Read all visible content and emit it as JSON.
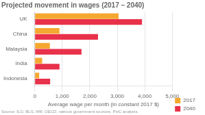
{
  "chart_data": {
    "type": "bar",
    "orientation": "horizontal",
    "title": "Projected movement in wages (2017 – 2040)",
    "categories": [
      "UK",
      "China",
      "Malaysia",
      "India",
      "Indonesia"
    ],
    "series": [
      {
        "name": "2017",
        "color": "#F5A830",
        "values": [
          3050,
          900,
          550,
          270,
          160
        ]
      },
      {
        "name": "2040",
        "color": "#E8314A",
        "values": [
          3900,
          2300,
          1700,
          900,
          560
        ]
      }
    ],
    "xlabel": "Average wage per month (in constant 2017 $)",
    "xlim": [
      0,
      5000
    ],
    "xticks": [
      0,
      {
        "value": 1000,
        "label": "1,000"
      },
      {
        "value": 2000,
        "label": "2,000"
      },
      {
        "value": 3000,
        "label": "3,000"
      },
      {
        "value": 4000,
        "label": "4,000"
      },
      {
        "value": 5000,
        "label": "5,000"
      }
    ],
    "grid": true,
    "legend": "lower right",
    "annotations": [
      "Source: ILO, BLS, IMF, OECD, various government sources, PwC analysis."
    ]
  }
}
